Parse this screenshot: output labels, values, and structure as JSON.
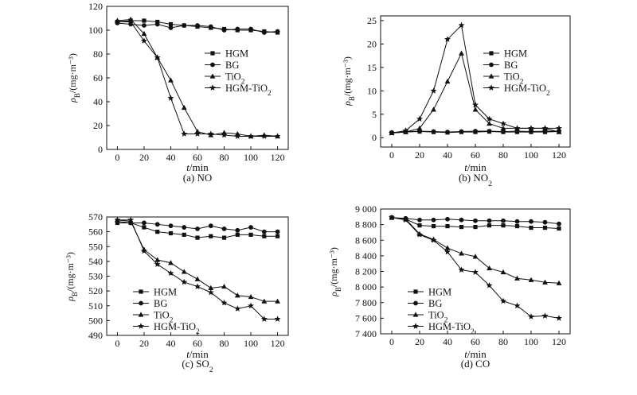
{
  "chart_data": [
    {
      "type": "line",
      "caption": "(a) NO",
      "xlabel": "t/min",
      "ylabel": "ρB/(mg·m⁻³)",
      "x": [
        0,
        10,
        20,
        30,
        40,
        50,
        60,
        70,
        80,
        90,
        100,
        110,
        120
      ],
      "xlim": [
        -8,
        128
      ],
      "xticks": [
        0,
        20,
        40,
        60,
        80,
        100,
        120
      ],
      "ylim": [
        0,
        120
      ],
      "yticks": [
        0,
        20,
        40,
        60,
        80,
        100,
        120
      ],
      "ytick_labels": [
        "0",
        "20",
        "40",
        "60",
        "80",
        "100",
        "120"
      ],
      "legend_position": "right",
      "series": [
        {
          "name": "HGM",
          "marker": "square",
          "values": [
            107,
            108,
            108,
            107,
            105,
            104,
            103,
            102,
            101,
            100,
            100,
            99,
            98
          ]
        },
        {
          "name": "BG",
          "marker": "circle",
          "values": [
            106,
            105,
            104,
            105,
            102,
            104,
            104,
            103,
            100,
            101,
            101,
            98,
            99
          ]
        },
        {
          "name": "TiO2",
          "marker": "triangle",
          "values": [
            108,
            109,
            97,
            77,
            58,
            35,
            15,
            12,
            14,
            13,
            11,
            12,
            11
          ]
        },
        {
          "name": "HGM-TiO2",
          "marker": "star",
          "values": [
            107,
            107,
            91,
            77,
            43,
            13,
            13,
            13,
            12,
            11,
            11,
            11,
            11
          ]
        }
      ]
    },
    {
      "type": "line",
      "caption": "(b) NO2",
      "xlabel": "t/min",
      "ylabel": "ρB/(mg·m⁻³)",
      "x": [
        0,
        10,
        20,
        30,
        40,
        50,
        60,
        70,
        80,
        90,
        100,
        110,
        120
      ],
      "xlim": [
        -8,
        128
      ],
      "xticks": [
        0,
        20,
        40,
        60,
        80,
        100,
        120
      ],
      "ylim": [
        -2,
        26
      ],
      "yticks": [
        0,
        5,
        10,
        15,
        20,
        25
      ],
      "ytick_labels": [
        "0",
        "5",
        "10",
        "15",
        "20",
        "25"
      ],
      "legend_position": "top-right",
      "series": [
        {
          "name": "HGM",
          "marker": "square",
          "values": [
            1,
            1.2,
            1.3,
            1.2,
            1.1,
            1.2,
            1.2,
            1.3,
            1.2,
            1.2,
            1.2,
            1.2,
            1.3
          ]
        },
        {
          "name": "BG",
          "marker": "circle",
          "values": [
            1.1,
            1.3,
            1.4,
            1.3,
            1.2,
            1.3,
            1.4,
            1.4,
            1.3,
            1.4,
            1.3,
            1.4,
            1.4
          ]
        },
        {
          "name": "TiO2",
          "marker": "triangle",
          "values": [
            1,
            1.2,
            2,
            6,
            12,
            18,
            6,
            3,
            2,
            2,
            2,
            2,
            1.2
          ]
        },
        {
          "name": "HGM-TiO2",
          "marker": "star",
          "values": [
            1,
            1.5,
            4,
            10,
            21,
            24,
            7,
            4,
            3,
            2,
            2,
            2,
            2
          ]
        }
      ]
    },
    {
      "type": "line",
      "caption": "(c) SO2",
      "xlabel": "t/min",
      "ylabel": "ρB/(mg·m⁻³)",
      "x": [
        0,
        10,
        20,
        30,
        40,
        50,
        60,
        70,
        80,
        90,
        100,
        110,
        120
      ],
      "xlim": [
        -8,
        128
      ],
      "xticks": [
        0,
        20,
        40,
        60,
        80,
        100,
        120
      ],
      "ylim": [
        490,
        570
      ],
      "yticks": [
        490,
        500,
        510,
        520,
        530,
        540,
        550,
        560,
        570
      ],
      "ytick_labels": [
        "490",
        "500",
        "510",
        "520",
        "530",
        "540",
        "550",
        "560",
        "570"
      ],
      "legend_position": "bottom-left",
      "series": [
        {
          "name": "HGM",
          "marker": "square",
          "values": [
            566,
            566,
            563,
            560,
            559,
            558,
            556,
            557,
            556,
            558,
            558,
            557,
            557
          ]
        },
        {
          "name": "BG",
          "marker": "circle",
          "values": [
            567,
            566,
            566,
            565,
            564,
            563,
            562,
            564,
            562,
            561,
            563,
            560,
            560
          ]
        },
        {
          "name": "TiO2",
          "marker": "triangle",
          "values": [
            568,
            567,
            548,
            541,
            539,
            533,
            528,
            522,
            523,
            517,
            516,
            513,
            513
          ]
        },
        {
          "name": "HGM-TiO2",
          "marker": "star",
          "values": [
            568,
            568,
            547,
            538,
            532,
            526,
            523,
            519,
            512,
            508,
            510,
            501,
            501
          ]
        }
      ]
    },
    {
      "type": "line",
      "caption": "(d) CO",
      "xlabel": "t/min",
      "ylabel": "ρB/(mg·m⁻³)",
      "x": [
        0,
        10,
        20,
        30,
        40,
        50,
        60,
        70,
        80,
        90,
        100,
        110,
        120
      ],
      "xlim": [
        -8,
        128
      ],
      "xticks": [
        0,
        20,
        40,
        60,
        80,
        100,
        120
      ],
      "ylim": [
        7400,
        9000
      ],
      "yticks": [
        7400,
        7600,
        7800,
        8000,
        8200,
        8400,
        8600,
        8800,
        9000
      ],
      "ytick_labels": [
        "7 400",
        "7 600",
        "7 800",
        "8 000",
        "8 200",
        "8 400",
        "8 600",
        "8 800",
        "9 000"
      ],
      "legend_position": "bottom-left",
      "series": [
        {
          "name": "HGM",
          "marker": "square",
          "values": [
            8890,
            8870,
            8790,
            8780,
            8780,
            8770,
            8770,
            8790,
            8790,
            8780,
            8760,
            8760,
            8750
          ]
        },
        {
          "name": "BG",
          "marker": "circle",
          "values": [
            8890,
            8880,
            8860,
            8860,
            8870,
            8860,
            8850,
            8850,
            8850,
            8840,
            8840,
            8830,
            8810
          ]
        },
        {
          "name": "TiO2",
          "marker": "triangle",
          "values": [
            8890,
            8870,
            8680,
            8610,
            8500,
            8430,
            8390,
            8240,
            8190,
            8110,
            8090,
            8060,
            8050
          ]
        },
        {
          "name": "HGM-TiO2",
          "marker": "star",
          "values": [
            8890,
            8860,
            8670,
            8600,
            8450,
            8220,
            8190,
            8020,
            7820,
            7760,
            7620,
            7630,
            7600
          ]
        }
      ]
    }
  ]
}
